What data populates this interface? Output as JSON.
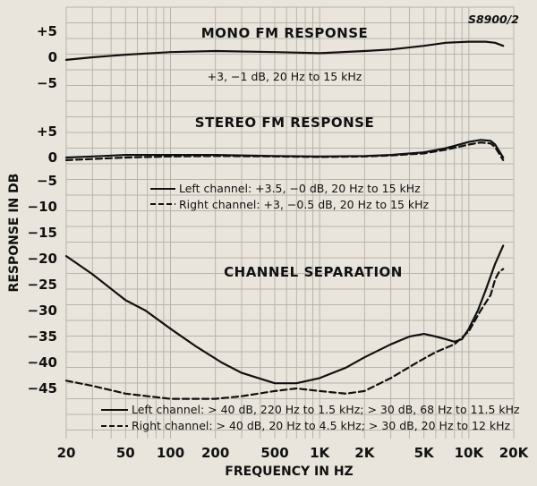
{
  "chart_data": {
    "type": "line",
    "figure_id": "S8900/2",
    "xlabel": "FREQUENCY IN HZ",
    "ylabel": "RESPONSE IN DB",
    "x_scale": "log",
    "xlim": [
      20,
      20000
    ],
    "x_ticks": [
      20,
      50,
      100,
      200,
      500,
      1000,
      2000,
      5000,
      10000,
      20000
    ],
    "x_tick_labels": [
      "20",
      "50",
      "100",
      "200",
      "500",
      "1K",
      "2K",
      "5K",
      "10K",
      "20K"
    ],
    "grid": true,
    "panels": [
      {
        "id": "mono",
        "title": "MONO FM RESPONSE",
        "y_ticks": [
          5,
          0,
          -5
        ],
        "y_tick_labels": [
          "+5",
          "0",
          "−5"
        ],
        "annotations": [
          "+3, −1 dB, 20 Hz to 15 kHz"
        ],
        "series": [
          {
            "style": "solid",
            "x": [
              20,
              30,
              50,
              100,
              200,
              500,
              1000,
              2000,
              3000,
              5000,
              7000,
              10000,
              13000,
              15000,
              17000
            ],
            "y": [
              -0.5,
              0,
              0.5,
              1,
              1.2,
              1,
              0.8,
              1.2,
              1.5,
              2.2,
              2.8,
              3,
              3,
              2.8,
              2.2
            ]
          }
        ]
      },
      {
        "id": "stereo",
        "title": "STEREO FM RESPONSE",
        "y_ticks": [
          5,
          0
        ],
        "y_tick_labels": [
          "+5",
          "0"
        ],
        "annotations": [
          "Left channel: +3.5, −0 dB, 20 Hz to 15 kHz",
          "Right channel: +3, −0.5 dB, 20 Hz to 15 kHz"
        ],
        "series": [
          {
            "style": "solid",
            "x": [
              20,
              30,
              50,
              100,
              200,
              500,
              1000,
              2000,
              3000,
              5000,
              7000,
              10000,
              12000,
              14000,
              15000,
              17000
            ],
            "y": [
              0,
              0.2,
              0.5,
              0.5,
              0.5,
              0.3,
              0.2,
              0.3,
              0.5,
              1,
              1.8,
              3,
              3.4,
              3.2,
              2.5,
              0
            ]
          },
          {
            "style": "dashed",
            "x": [
              20,
              30,
              50,
              100,
              200,
              500,
              1000,
              2000,
              3000,
              5000,
              7000,
              10000,
              12000,
              14000,
              15000,
              17000
            ],
            "y": [
              -0.5,
              -0.3,
              0,
              0.2,
              0.3,
              0.2,
              0.1,
              0.2,
              0.4,
              0.8,
              1.5,
              2.5,
              2.9,
              2.7,
              2,
              -0.5
            ]
          }
        ]
      },
      {
        "id": "separation",
        "title": "CHANNEL SEPARATION",
        "y_ticks": [
          -5,
          -10,
          -15,
          -20,
          -25,
          -30,
          -35,
          -40,
          -45
        ],
        "y_tick_labels": [
          "−5",
          "−10",
          "−15",
          "−20",
          "−25",
          "−30",
          "−35",
          "−40",
          "−45"
        ],
        "annotations": [
          "Left channel: > 40 dB, 220 Hz to 1.5 kHz; > 30 dB, 68 Hz to 11.5 kHz",
          "Right channel: > 40 dB, 20 Hz to 4.5 kHz; > 30 dB, 20 Hz to 12 kHz"
        ],
        "series": [
          {
            "style": "solid",
            "x": [
              20,
              30,
              50,
              68,
              100,
              150,
              220,
              300,
              500,
              700,
              1000,
              1500,
              2000,
              3000,
              4000,
              5000,
              6000,
              7000,
              8000,
              9000,
              10000,
              11500,
              13000,
              15000,
              17000
            ],
            "y": [
              -19.5,
              -23,
              -28,
              -30,
              -33.5,
              -37,
              -40,
              -42,
              -44,
              -44,
              -43,
              -41,
              -39,
              -36.5,
              -35,
              -34.5,
              -35,
              -35.5,
              -36,
              -35.5,
              -33.5,
              -30,
              -26,
              -21,
              -17.5
            ]
          },
          {
            "style": "dashed",
            "x": [
              20,
              30,
              50,
              100,
              200,
              300,
              500,
              700,
              1000,
              1500,
              2000,
              3000,
              4500,
              6000,
              8000,
              10000,
              12000,
              14000,
              15000,
              16000,
              17000
            ],
            "y": [
              -43.5,
              -44.5,
              -46,
              -47,
              -47,
              -46.5,
              -45.5,
              -45,
              -45.5,
              -46,
              -45.5,
              -43,
              -40,
              -38,
              -36.5,
              -34,
              -30,
              -27,
              -24,
              -22.5,
              -22
            ]
          }
        ]
      }
    ]
  }
}
